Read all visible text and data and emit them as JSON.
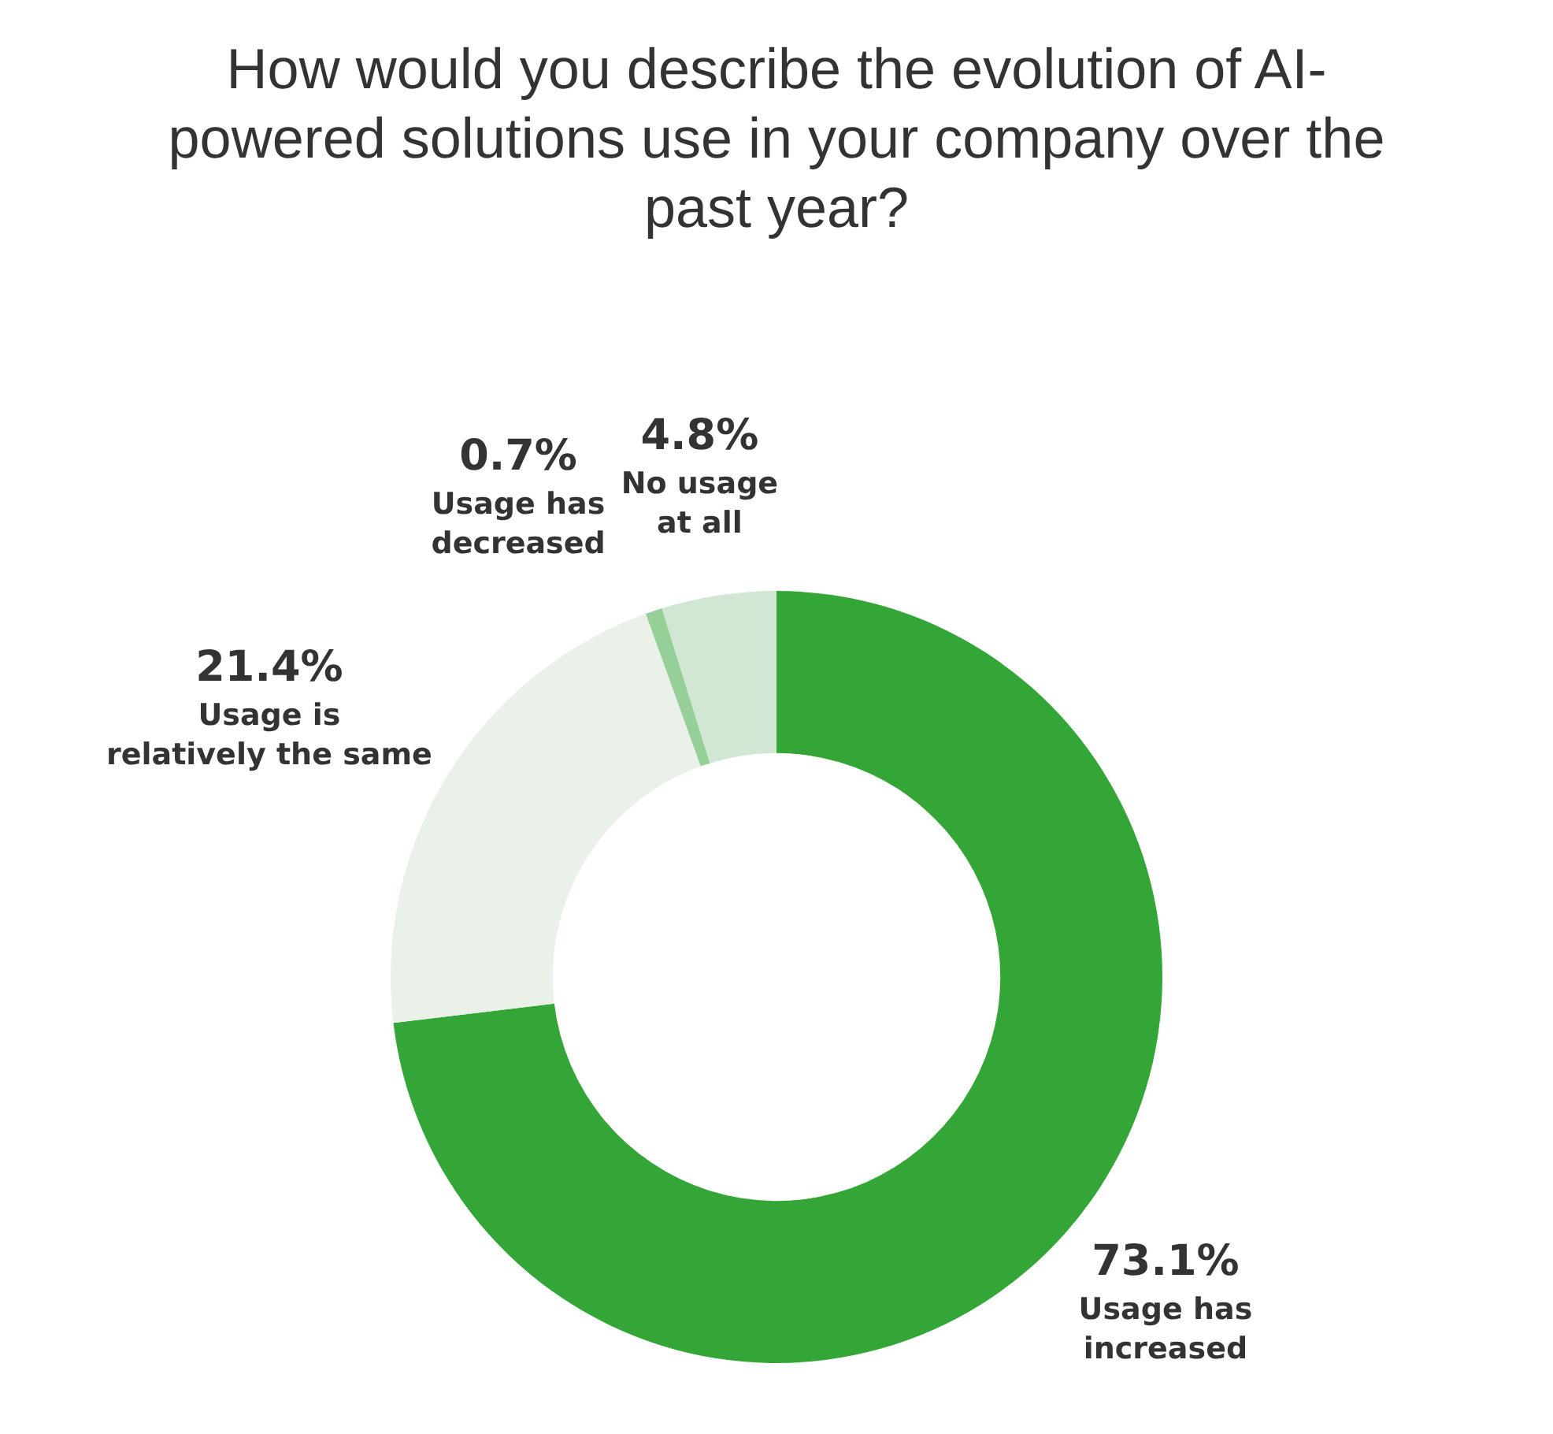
{
  "chart_data": {
    "type": "donut",
    "title": "How would you describe the evolution of AI-powered solutions use in your company over the past year?",
    "categories": [
      "Usage has increased",
      "Usage is relatively the same",
      "Usage has decreased",
      "No usage at all"
    ],
    "values": [
      73.1,
      21.4,
      0.7,
      4.8
    ],
    "value_labels": [
      "73.1%",
      "21.4%",
      "0.7%",
      "4.8%"
    ],
    "colors": [
      "#34a638",
      "#e9f1e9",
      "#96cf98",
      "#d2e7d3"
    ],
    "legend": false
  }
}
